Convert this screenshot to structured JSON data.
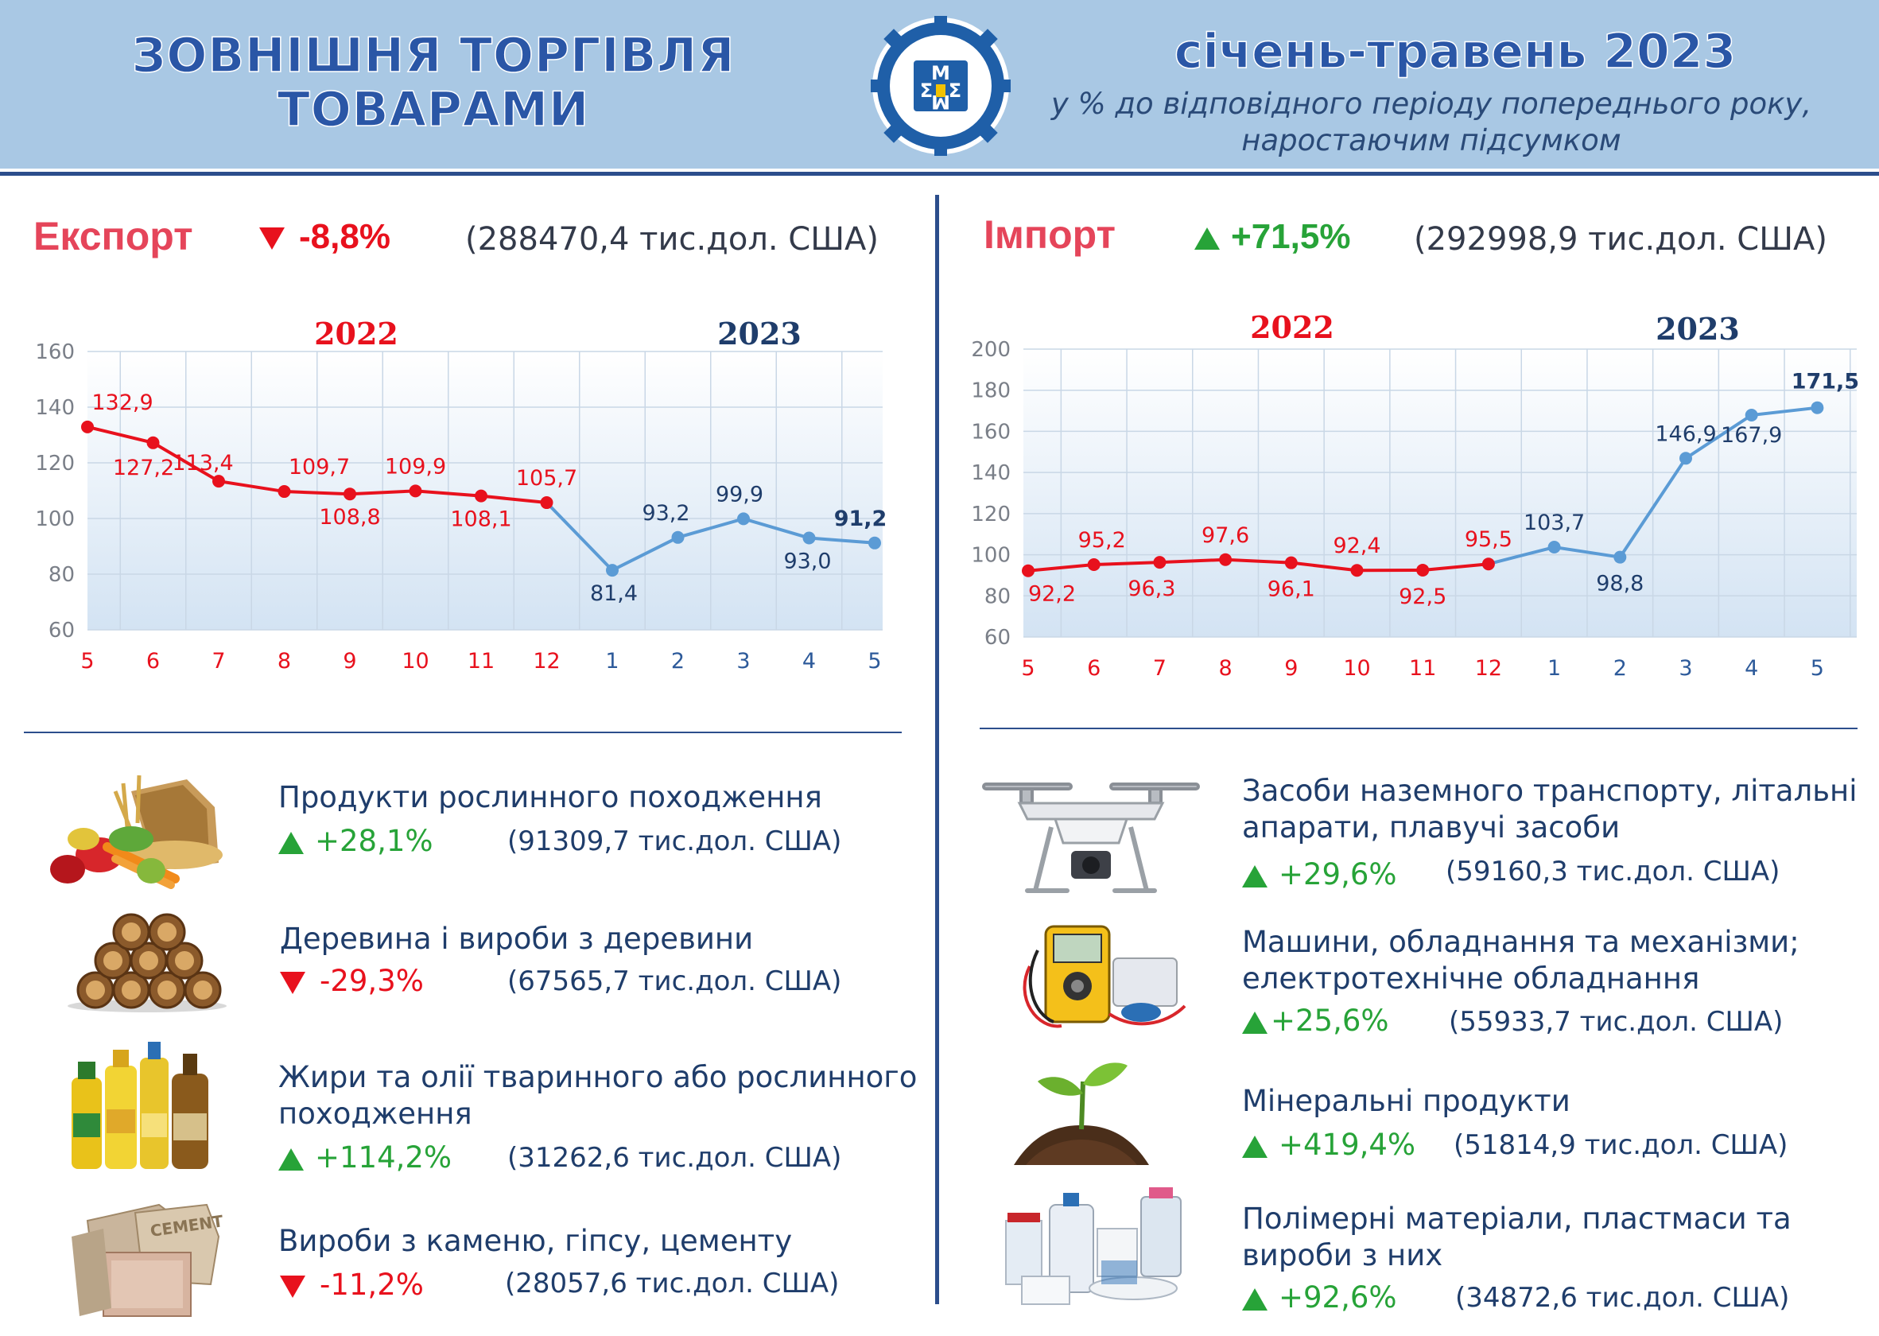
{
  "header": {
    "title_line1": "ЗОВНІШНЯ ТОРГІВЛЯ",
    "title_line2": "ТОВАРАМИ",
    "period": "січень-травень 2023",
    "note_line1": "у % до відповідного періоду попереднього року,",
    "note_line2": "наростаючим підсумком",
    "logo_icon": "statistics-service-gear-logo-icon"
  },
  "colors": {
    "header_bg": "#a9c8e4",
    "title": "#2a56a6",
    "series_2022": "#e8111d",
    "series_2023": "#5b9bd5",
    "up": "#27a338",
    "down": "#e8111d",
    "section_title": "#e5455a"
  },
  "export": {
    "title": "Експорт",
    "change": "-8,8%",
    "direction": "down",
    "amount": "(288470,4 тис.дол. США)",
    "categories": [
      {
        "name": "Продукти рослинного походження",
        "change": "+28,1%",
        "direction": "up",
        "amount": "(91309,7 тис.дол. США)",
        "icon": "vegetables-grain-icon"
      },
      {
        "name": "Деревина і вироби з деревини",
        "change": "-29,3%",
        "direction": "down",
        "amount": "(67565,7 тис.дол. США)",
        "icon": "firewood-logs-icon"
      },
      {
        "name": "Жири та олії тваринного або рослинного походження",
        "change": "+114,2%",
        "direction": "up",
        "amount": "(31262,6 тис.дол. США)",
        "icon": "oil-bottles-icon"
      },
      {
        "name": "Вироби з каменю, гіпсу, цементу",
        "change": "-11,2%",
        "direction": "down",
        "amount": "(28057,6 тис.дол. США)",
        "icon": "cement-bags-icon"
      }
    ]
  },
  "import": {
    "title": "Імпорт",
    "change": "+71,5%",
    "direction": "up",
    "amount": "(292998,9 тис.дол. США)",
    "categories": [
      {
        "name": "Засоби наземного транспорту, літальні апарати, плавучі засоби",
        "change": "+29,6%",
        "direction": "up",
        "amount": "(59160,3 тис.дол. США)",
        "icon": "drone-icon"
      },
      {
        "name": "Машини, обладнання та механізми; електротехнічне обладнання",
        "change": "+25,6%",
        "direction": "up",
        "amount": "(55933,7 тис.дол. США)",
        "icon": "multimeter-electronics-icon"
      },
      {
        "name": "Мінеральні продукти",
        "change": "+419,4%",
        "direction": "up",
        "amount": "(51814,9 тис.дол. США)",
        "icon": "sprout-soil-icon"
      },
      {
        "name": "Полімерні матеріали, пластмаси та вироби з них",
        "change": "+92,6%",
        "direction": "up",
        "amount": "(34872,6 тис.дол. США)",
        "icon": "plastic-containers-icon"
      }
    ]
  },
  "chart_data": [
    {
      "type": "line",
      "name": "export",
      "x": [
        "5",
        "6",
        "7",
        "8",
        "9",
        "10",
        "11",
        "12",
        "1",
        "2",
        "3",
        "4",
        "5"
      ],
      "year_labels": [
        "2022",
        "2023"
      ],
      "series": [
        {
          "name": "2022",
          "color": "#e8111d",
          "values": [
            132.9,
            127.2,
            113.4,
            109.7,
            108.8,
            109.9,
            108.1,
            105.7,
            null,
            null,
            null,
            null,
            null
          ]
        },
        {
          "name": "2023",
          "color": "#5b9bd5",
          "values": [
            null,
            null,
            null,
            null,
            null,
            null,
            null,
            105.7,
            81.4,
            93.2,
            99.9,
            93.0,
            91.2
          ]
        }
      ],
      "labels": [
        "132,9",
        "127,2",
        "113,4",
        "109,7",
        "108,8",
        "109,9",
        "108,1",
        "105,7",
        "81,4",
        "93,2",
        "99,9",
        "93,0",
        "91,2"
      ],
      "yticks": [
        "60",
        "80",
        "100",
        "120",
        "140",
        "160"
      ],
      "ylim": [
        60,
        160
      ],
      "grid": true
    },
    {
      "type": "line",
      "name": "import",
      "x": [
        "5",
        "6",
        "7",
        "8",
        "9",
        "10",
        "11",
        "12",
        "1",
        "2",
        "3",
        "4",
        "5"
      ],
      "year_labels": [
        "2022",
        "2023"
      ],
      "series": [
        {
          "name": "2022",
          "color": "#e8111d",
          "values": [
            92.2,
            95.2,
            96.3,
            97.6,
            96.1,
            92.4,
            92.5,
            95.5,
            null,
            null,
            null,
            null,
            null
          ]
        },
        {
          "name": "2023",
          "color": "#5b9bd5",
          "values": [
            null,
            null,
            null,
            null,
            null,
            null,
            null,
            95.5,
            103.7,
            98.8,
            146.9,
            167.9,
            171.5
          ]
        }
      ],
      "labels": [
        "92,2",
        "95,2",
        "96,3",
        "97,6",
        "96,1",
        "92,4",
        "92,5",
        "95,5",
        "103,7",
        "98,8",
        "146,9",
        "167,9",
        "171,5"
      ],
      "yticks": [
        "60",
        "80",
        "100",
        "120",
        "140",
        "160",
        "180",
        "200"
      ],
      "ylim": [
        60,
        200
      ],
      "grid": true
    }
  ]
}
